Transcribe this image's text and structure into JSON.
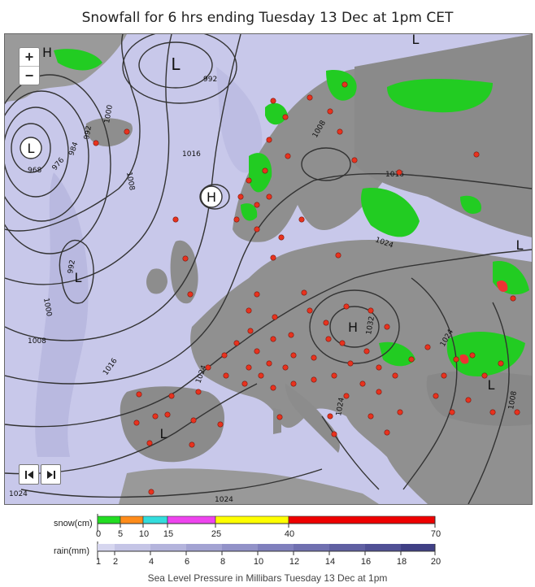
{
  "title": "Snowfall for 6 hrs ending Tuesday 13 Dec at 1pm CET",
  "caption": "Sea Level Pressure in Millibars Tuesday 13 Dec at 1pm",
  "zoom": {
    "in_label": "+",
    "out_label": "−"
  },
  "pressure_centers": [
    {
      "label": "L",
      "kind": "low"
    },
    {
      "label": "L",
      "kind": "low"
    },
    {
      "label": "L",
      "kind": "low"
    },
    {
      "label": "H",
      "kind": "high"
    },
    {
      "label": "H",
      "kind": "high"
    },
    {
      "label": "H",
      "kind": "high"
    },
    {
      "label": "L",
      "kind": "low"
    },
    {
      "label": "L",
      "kind": "low"
    },
    {
      "label": "L",
      "kind": "low"
    },
    {
      "label": "L",
      "kind": "low"
    }
  ],
  "isobar_labels": [
    "992",
    "1000",
    "992",
    "984",
    "976",
    "968",
    "1008",
    "1016",
    "1008",
    "1016",
    "1024",
    "1000",
    "992",
    "1008",
    "1016",
    "1024",
    "1024",
    "1024",
    "1032",
    "1024",
    "1008",
    "1024"
  ],
  "legend": {
    "snow": {
      "label": "snow(cm)",
      "ticks": [
        "0",
        "5",
        "10",
        "15",
        "25",
        "40",
        "70"
      ],
      "colors": [
        "#22dd22",
        "#ff8c1a",
        "#33dddd",
        "#ee44ee",
        "#ffff00",
        "#ee0000"
      ]
    },
    "rain": {
      "label": "rain(mm)",
      "ticks": [
        "1",
        "2",
        "4",
        "6",
        "8",
        "10",
        "12",
        "14",
        "16",
        "18",
        "20"
      ],
      "colors": [
        "#d6d6ef",
        "#c5c5e6",
        "#b4b4dc",
        "#a3a3d2",
        "#9292c8",
        "#8080bd",
        "#7070b0",
        "#6060a2",
        "#505095",
        "#404085"
      ]
    }
  }
}
